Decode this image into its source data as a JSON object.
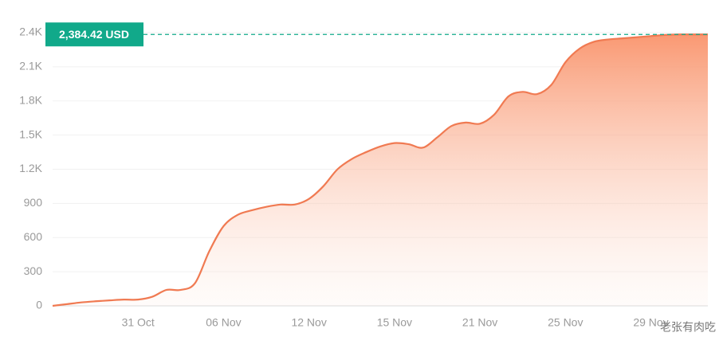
{
  "chart_data": {
    "type": "area",
    "categories": [
      null,
      null,
      null,
      null,
      null,
      null,
      "31 Oct",
      null,
      null,
      null,
      null,
      null,
      "06 Nov",
      null,
      null,
      null,
      null,
      null,
      "12 Nov",
      null,
      null,
      null,
      null,
      null,
      "15 Nov",
      null,
      null,
      null,
      null,
      null,
      "21 Nov",
      null,
      null,
      null,
      null,
      null,
      "25 Nov",
      null,
      null,
      null,
      null,
      null,
      "29 Nov",
      null,
      null,
      null,
      null
    ],
    "values": [
      0,
      15,
      30,
      40,
      48,
      55,
      55,
      80,
      140,
      140,
      200,
      480,
      700,
      800,
      840,
      870,
      890,
      890,
      940,
      1050,
      1200,
      1290,
      1350,
      1400,
      1430,
      1420,
      1390,
      1480,
      1580,
      1610,
      1600,
      1680,
      1840,
      1880,
      1860,
      1940,
      2140,
      2260,
      2320,
      2340,
      2350,
      2360,
      2370,
      2380,
      2384.42,
      2384.42,
      2384.42
    ],
    "color": "#f07a52",
    "ylim": [
      0,
      2400
    ],
    "yticks": [
      0,
      300,
      600,
      900,
      {
        "value": 1200,
        "label": "1.2K"
      },
      {
        "value": 1500,
        "label": "1.5K"
      },
      {
        "value": 1800,
        "label": "1.8K"
      },
      {
        "value": 2100,
        "label": "2.1K"
      },
      {
        "value": 2400,
        "label": "2.4K"
      }
    ],
    "grid": true,
    "annotation": {
      "value": 2384.42,
      "label": "2,384.42 USD",
      "color": "#11a98a"
    },
    "watermark": "老张有肉吃"
  }
}
